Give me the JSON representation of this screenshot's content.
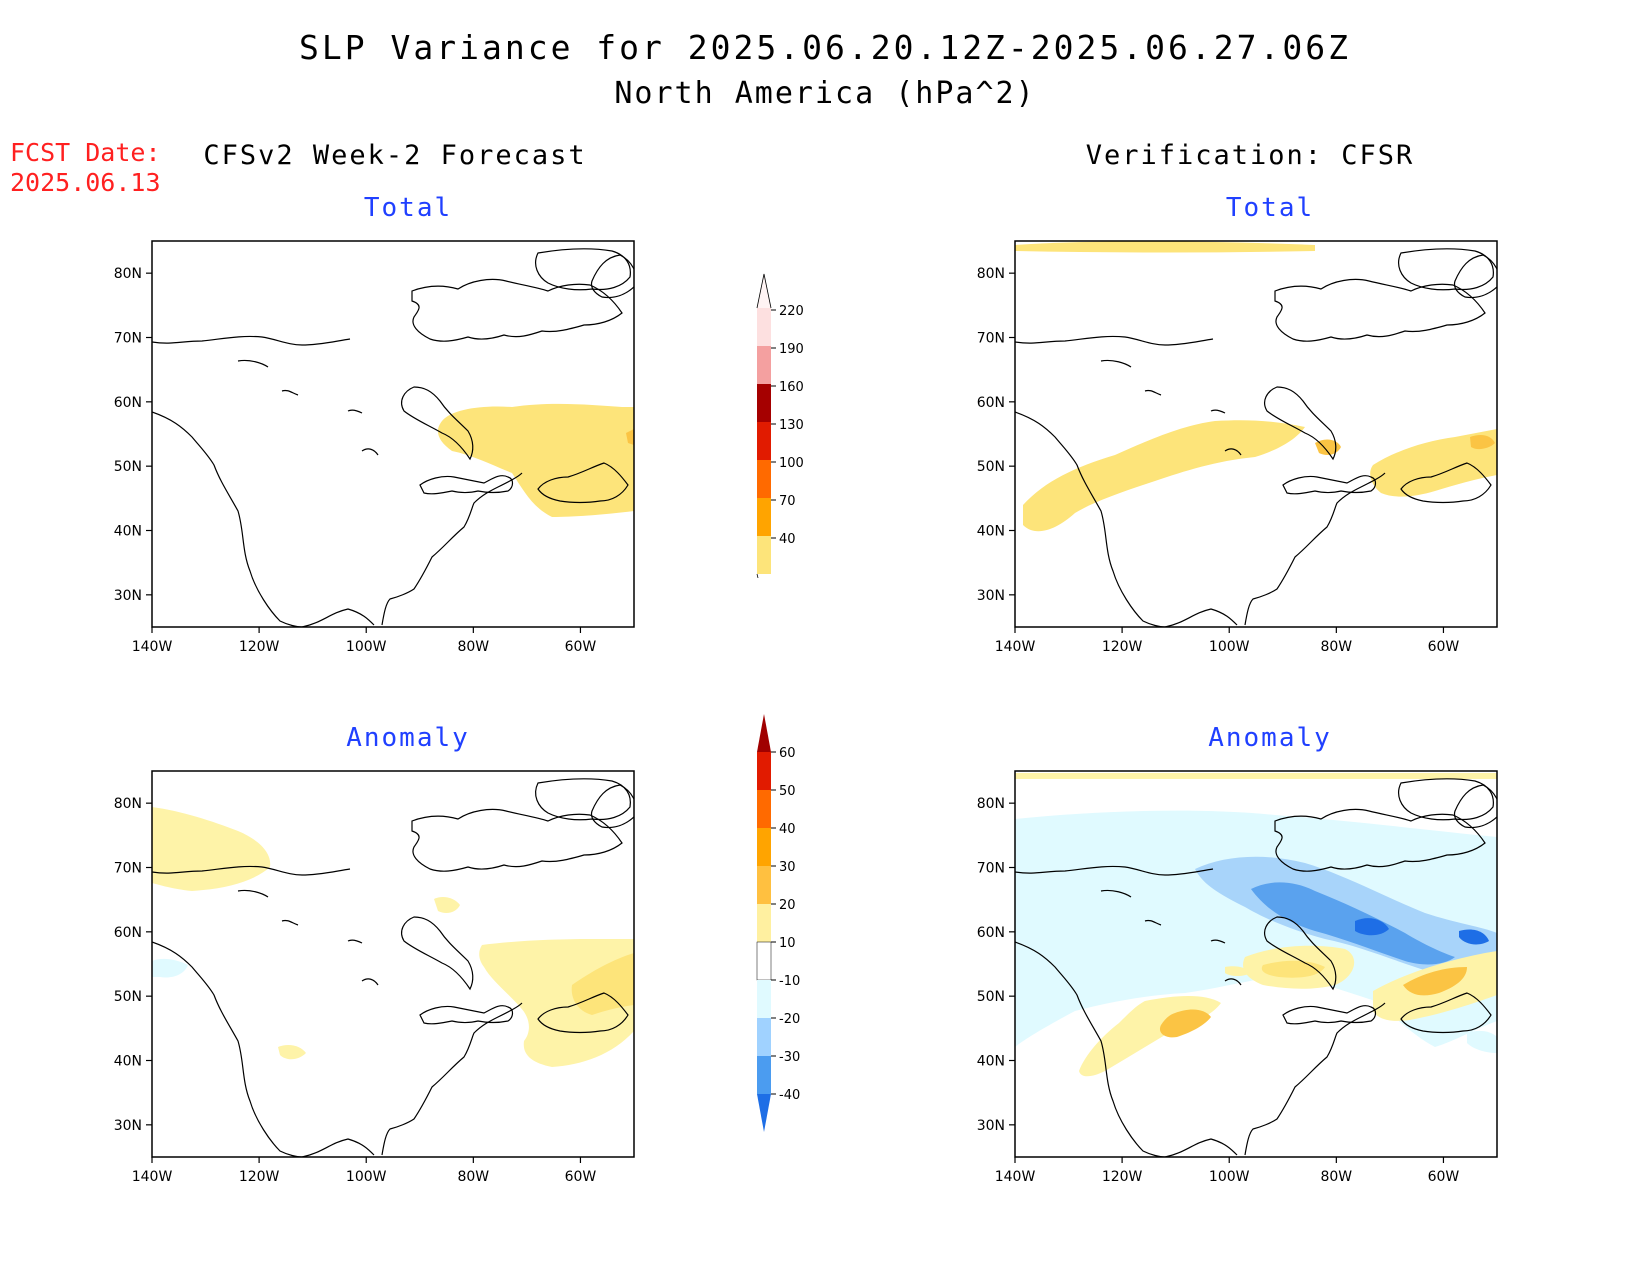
{
  "header": {
    "title": "SLP Variance for 2025.06.20.12Z-2025.06.27.06Z",
    "subtitle": "North America (hPa^2)",
    "fcst_label": "FCST Date:",
    "fcst_date": "2025.06.13"
  },
  "columns": {
    "left": "CFSv2 Week-2 Forecast",
    "right": "Verification: CFSR"
  },
  "panels": {
    "tl": "Total",
    "tr": "Total",
    "bl": "Anomaly",
    "br": "Anomaly"
  },
  "map_axes": {
    "lon_ticks": [
      "140W",
      "120W",
      "100W",
      "80W",
      "60W"
    ],
    "lat_ticks": [
      "80N",
      "70N",
      "60N",
      "50N",
      "40N",
      "30N"
    ],
    "lon_range": [
      -140,
      -50
    ],
    "lat_range": [
      25,
      85
    ]
  },
  "colorbars": {
    "total": {
      "labels": [
        "40",
        "70",
        "100",
        "130",
        "160",
        "190",
        "220"
      ],
      "colors": [
        "#fde47a",
        "#ffa400",
        "#ff6a00",
        "#e11b00",
        "#a50000",
        "#f4a0a0",
        "#fde0e0"
      ]
    },
    "anomaly": {
      "labels": [
        "60",
        "50",
        "40",
        "30",
        "20",
        "10",
        "-10",
        "-20",
        "-30",
        "-40"
      ],
      "colors": [
        "#a00000",
        "#e11b00",
        "#ff6a00",
        "#ffa400",
        "#ffc040",
        "#fff0a0",
        "#ffffff",
        "#e0faff",
        "#a0d2ff",
        "#4b9cf0",
        "#1e6ee6"
      ]
    }
  },
  "legend_colors": {
    "pos1": "#fef3a8",
    "pos2": "#fde47a",
    "pos3": "#fbc444",
    "pos4": "#f9a000",
    "pos5": "#f07800",
    "neg1": "#e0faff",
    "neg2": "#a8d4fa",
    "neg3": "#5aa2ee",
    "neg4": "#1e6ee6"
  }
}
